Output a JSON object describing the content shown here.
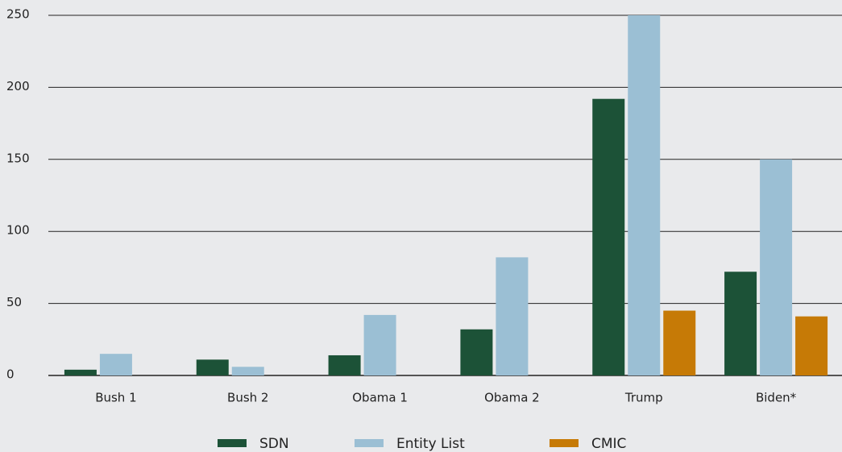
{
  "chart_data": {
    "type": "bar",
    "categories": [
      "Bush 1",
      "Bush 2",
      "Obama 1",
      "Obama 2",
      "Trump",
      "Biden*"
    ],
    "series": [
      {
        "name": "SDN",
        "color": "#1c5237",
        "values": [
          4,
          11,
          14,
          32,
          192,
          72
        ]
      },
      {
        "name": "Entity List",
        "color": "#9bbfd4",
        "values": [
          15,
          6,
          42,
          82,
          250,
          150
        ]
      },
      {
        "name": "CMIC",
        "color": "#c67a06",
        "values": [
          null,
          null,
          null,
          null,
          45,
          41
        ]
      }
    ],
    "ylim": [
      0,
      250
    ],
    "yticks": [
      0,
      50,
      100,
      150,
      200,
      250
    ],
    "grid": true,
    "legend": "bottom"
  }
}
